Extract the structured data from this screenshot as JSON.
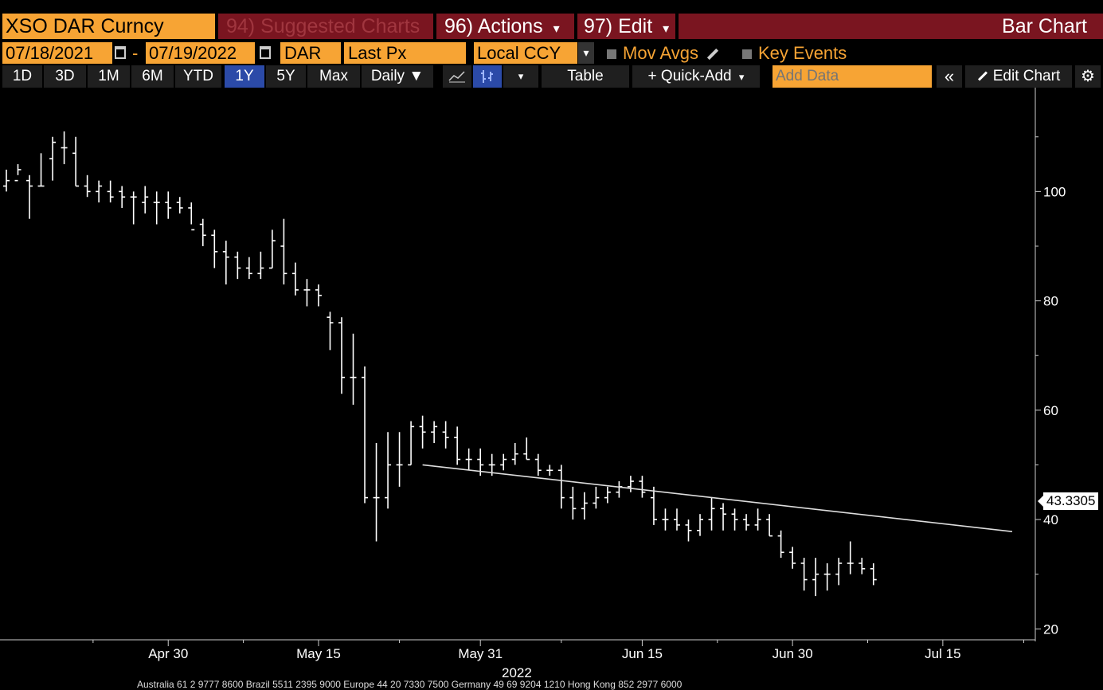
{
  "header": {
    "ticker": "XSO DAR Curncy",
    "suggested": "94) Suggested Charts",
    "actions": "96) Actions",
    "edit": "97) Edit",
    "chart_type": "Bar Chart",
    "caret": "▾"
  },
  "controls": {
    "date_from": "07/18/2021",
    "date_to": "07/19/2022",
    "date_sep": "-",
    "currency": "DAR",
    "field": "Last Px",
    "ccy_mode": "Local CCY",
    "mov_avgs": "Mov Avgs",
    "key_events": "Key Events"
  },
  "toolbar": {
    "periods": [
      "1D",
      "3D",
      "1M",
      "6M",
      "YTD",
      "1Y",
      "5Y",
      "Max"
    ],
    "active_period": "1Y",
    "frequency": "Daily ▼",
    "table": "Table",
    "quick_add": "+ Quick-Add",
    "add_data_placeholder": "Add Data",
    "collapse": "«",
    "edit_chart": "Edit Chart",
    "settings_icon": "gear-icon"
  },
  "footer": {
    "contacts": "Australia 61 2 9777 8600 Brazil 5511 2395 9000 Europe 44 20 7330 7500 Germany 49 69 9204 1210 Hong Kong 852 2977 6000"
  },
  "chart_data": {
    "type": "bar",
    "subtype": "ohlc",
    "last_price_label": "43.3305",
    "y_ticks": [
      20,
      40,
      60,
      80,
      100
    ],
    "ylim": [
      18,
      119
    ],
    "x_tick_labels": [
      "Apr 30",
      "May 15",
      "May 31",
      "Jun 15",
      "Jun 30",
      "Jul 15"
    ],
    "x_tick_day_index": [
      14,
      27,
      41,
      55,
      68,
      81
    ],
    "year_label": "2022",
    "xlim": [
      0,
      89
    ],
    "trendline": {
      "start": [
        36,
        50
      ],
      "end": [
        87,
        37.8
      ]
    },
    "bars": [
      {
        "d": 0,
        "o": 101,
        "h": 104,
        "l": 100,
        "c": 102
      },
      {
        "d": 1,
        "o": 102,
        "h": 105,
        "l": 103,
        "c": 104
      },
      {
        "d": 2,
        "o": 102,
        "h": 103,
        "l": 95,
        "c": 101
      },
      {
        "d": 3,
        "o": 101,
        "h": 107,
        "l": 101,
        "c": 101
      },
      {
        "d": 4,
        "o": 106,
        "h": 110,
        "l": 102,
        "c": 109
      },
      {
        "d": 5,
        "o": 108,
        "h": 111,
        "l": 105,
        "c": 108
      },
      {
        "d": 6,
        "o": 107,
        "h": 110,
        "l": 101,
        "c": 101
      },
      {
        "d": 7,
        "o": 101,
        "h": 103,
        "l": 99,
        "c": 100
      },
      {
        "d": 8,
        "o": 100,
        "h": 102,
        "l": 98,
        "c": 101
      },
      {
        "d": 9,
        "o": 100,
        "h": 102,
        "l": 98,
        "c": 99
      },
      {
        "d": 10,
        "o": 100,
        "h": 101,
        "l": 97,
        "c": 99
      },
      {
        "d": 11,
        "o": 99,
        "h": 100,
        "l": 94,
        "c": 99
      },
      {
        "d": 12,
        "o": 98,
        "h": 101,
        "l": 96,
        "c": 99
      },
      {
        "d": 13,
        "o": 98,
        "h": 100,
        "l": 94,
        "c": 98
      },
      {
        "d": 14,
        "o": 98,
        "h": 100,
        "l": 95,
        "c": 97
      },
      {
        "d": 15,
        "o": 98,
        "h": 99,
        "l": 96,
        "c": 97
      },
      {
        "d": 16,
        "o": 97,
        "h": 98,
        "l": 94,
        "c": 93
      },
      {
        "d": 17,
        "o": 94,
        "h": 95,
        "l": 90,
        "c": 92
      },
      {
        "d": 18,
        "o": 92,
        "h": 93,
        "l": 86,
        "c": 89
      },
      {
        "d": 19,
        "o": 89,
        "h": 91,
        "l": 83,
        "c": 88
      },
      {
        "d": 20,
        "o": 88,
        "h": 89,
        "l": 84,
        "c": 86
      },
      {
        "d": 21,
        "o": 86,
        "h": 88,
        "l": 84,
        "c": 85
      },
      {
        "d": 22,
        "o": 85,
        "h": 89,
        "l": 84,
        "c": 86
      },
      {
        "d": 23,
        "o": 86,
        "h": 93,
        "l": 86,
        "c": 91
      },
      {
        "d": 24,
        "o": 90,
        "h": 95,
        "l": 83,
        "c": 85
      },
      {
        "d": 25,
        "o": 85,
        "h": 87,
        "l": 81,
        "c": 82
      },
      {
        "d": 26,
        "o": 82,
        "h": 84,
        "l": 79,
        "c": 82
      },
      {
        "d": 27,
        "o": 82,
        "h": 83,
        "l": 79,
        "c": 81
      },
      {
        "d": 28,
        "o": 77,
        "h": 78,
        "l": 71,
        "c": 76
      },
      {
        "d": 29,
        "o": 76,
        "h": 77,
        "l": 63,
        "c": 66
      },
      {
        "d": 30,
        "o": 66,
        "h": 74,
        "l": 61,
        "c": 66
      },
      {
        "d": 31,
        "o": 66,
        "h": 68,
        "l": 43,
        "c": 44
      },
      {
        "d": 32,
        "o": 44,
        "h": 54,
        "l": 36,
        "c": 44
      },
      {
        "d": 33,
        "o": 44,
        "h": 56,
        "l": 42,
        "c": 50
      },
      {
        "d": 34,
        "o": 50,
        "h": 56,
        "l": 46,
        "c": 50
      },
      {
        "d": 35,
        "o": 50,
        "h": 58,
        "l": 50,
        "c": 57
      },
      {
        "d": 36,
        "o": 57,
        "h": 59,
        "l": 53,
        "c": 56
      },
      {
        "d": 37,
        "o": 56,
        "h": 58,
        "l": 54,
        "c": 57
      },
      {
        "d": 38,
        "o": 56,
        "h": 58,
        "l": 53,
        "c": 55
      },
      {
        "d": 39,
        "o": 55,
        "h": 57,
        "l": 50,
        "c": 51
      },
      {
        "d": 40,
        "o": 51,
        "h": 53,
        "l": 49,
        "c": 51
      },
      {
        "d": 41,
        "o": 51,
        "h": 53,
        "l": 48,
        "c": 50
      },
      {
        "d": 42,
        "o": 50,
        "h": 52,
        "l": 48,
        "c": 50
      },
      {
        "d": 43,
        "o": 50,
        "h": 52,
        "l": 49,
        "c": 51
      },
      {
        "d": 44,
        "o": 51,
        "h": 54,
        "l": 50,
        "c": 52
      },
      {
        "d": 45,
        "o": 52,
        "h": 55,
        "l": 51,
        "c": 51
      },
      {
        "d": 46,
        "o": 51,
        "h": 52,
        "l": 48,
        "c": 49
      },
      {
        "d": 47,
        "o": 49,
        "h": 50,
        "l": 48,
        "c": 49
      },
      {
        "d": 48,
        "o": 49,
        "h": 50,
        "l": 42,
        "c": 44
      },
      {
        "d": 49,
        "o": 44,
        "h": 46,
        "l": 40,
        "c": 42
      },
      {
        "d": 50,
        "o": 42,
        "h": 45,
        "l": 40,
        "c": 43
      },
      {
        "d": 51,
        "o": 43,
        "h": 46,
        "l": 42,
        "c": 44
      },
      {
        "d": 52,
        "o": 44,
        "h": 46,
        "l": 43,
        "c": 45
      },
      {
        "d": 53,
        "o": 45,
        "h": 47,
        "l": 44,
        "c": 46
      },
      {
        "d": 54,
        "o": 46,
        "h": 48,
        "l": 45,
        "c": 47
      },
      {
        "d": 55,
        "o": 47,
        "h": 48,
        "l": 44,
        "c": 45
      },
      {
        "d": 56,
        "o": 44,
        "h": 46,
        "l": 39,
        "c": 40
      },
      {
        "d": 57,
        "o": 40,
        "h": 42,
        "l": 38,
        "c": 40
      },
      {
        "d": 58,
        "o": 40,
        "h": 42,
        "l": 38,
        "c": 39
      },
      {
        "d": 59,
        "o": 39,
        "h": 40,
        "l": 36,
        "c": 38
      },
      {
        "d": 60,
        "o": 38,
        "h": 41,
        "l": 37,
        "c": 40
      },
      {
        "d": 61,
        "o": 40,
        "h": 44,
        "l": 38,
        "c": 42
      },
      {
        "d": 62,
        "o": 42,
        "h": 43,
        "l": 38,
        "c": 41
      },
      {
        "d": 63,
        "o": 41,
        "h": 42,
        "l": 38,
        "c": 40
      },
      {
        "d": 64,
        "o": 40,
        "h": 41,
        "l": 38,
        "c": 39
      },
      {
        "d": 65,
        "o": 39,
        "h": 42,
        "l": 38,
        "c": 40
      },
      {
        "d": 66,
        "o": 40,
        "h": 41,
        "l": 37,
        "c": 37
      },
      {
        "d": 67,
        "o": 37,
        "h": 38,
        "l": 33,
        "c": 34
      },
      {
        "d": 68,
        "o": 34,
        "h": 35,
        "l": 31,
        "c": 32
      },
      {
        "d": 69,
        "o": 32,
        "h": 33,
        "l": 27,
        "c": 29
      },
      {
        "d": 70,
        "o": 29,
        "h": 33,
        "l": 26,
        "c": 30
      },
      {
        "d": 71,
        "o": 30,
        "h": 32,
        "l": 27,
        "c": 30
      },
      {
        "d": 72,
        "o": 30,
        "h": 33,
        "l": 28,
        "c": 32
      },
      {
        "d": 73,
        "o": 32,
        "h": 36,
        "l": 30,
        "c": 32
      },
      {
        "d": 74,
        "o": 32,
        "h": 33,
        "l": 30,
        "c": 31
      },
      {
        "d": 75,
        "o": 31,
        "h": 32,
        "l": 28,
        "c": 29
      }
    ]
  }
}
